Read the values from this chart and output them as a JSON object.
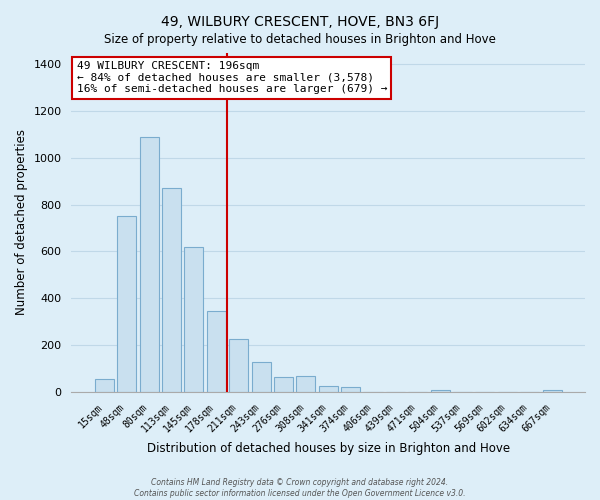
{
  "title": "49, WILBURY CRESCENT, HOVE, BN3 6FJ",
  "subtitle": "Size of property relative to detached houses in Brighton and Hove",
  "xlabel": "Distribution of detached houses by size in Brighton and Hove",
  "ylabel": "Number of detached properties",
  "bar_labels": [
    "15sqm",
    "48sqm",
    "80sqm",
    "113sqm",
    "145sqm",
    "178sqm",
    "211sqm",
    "243sqm",
    "276sqm",
    "308sqm",
    "341sqm",
    "374sqm",
    "406sqm",
    "439sqm",
    "471sqm",
    "504sqm",
    "537sqm",
    "569sqm",
    "602sqm",
    "634sqm",
    "667sqm"
  ],
  "bar_values": [
    55,
    750,
    1090,
    870,
    620,
    345,
    225,
    130,
    65,
    70,
    25,
    20,
    0,
    0,
    0,
    10,
    0,
    0,
    0,
    0,
    10
  ],
  "bar_color": "#c9e0ef",
  "bar_edge_color": "#7aacce",
  "vline_x": 6.0,
  "vline_color": "#cc0000",
  "annotation_title": "49 WILBURY CRESCENT: 196sqm",
  "annotation_line1": "← 84% of detached houses are smaller (3,578)",
  "annotation_line2": "16% of semi-detached houses are larger (679) →",
  "box_edge_color": "#cc0000",
  "ylim": [
    0,
    1450
  ],
  "yticks": [
    0,
    200,
    400,
    600,
    800,
    1000,
    1200,
    1400
  ],
  "footer1": "Contains HM Land Registry data © Crown copyright and database right 2024.",
  "footer2": "Contains public sector information licensed under the Open Government Licence v3.0.",
  "bg_color": "#ddeef8",
  "plot_bg_color": "#ddeef8",
  "grid_color": "#c0d8e8"
}
